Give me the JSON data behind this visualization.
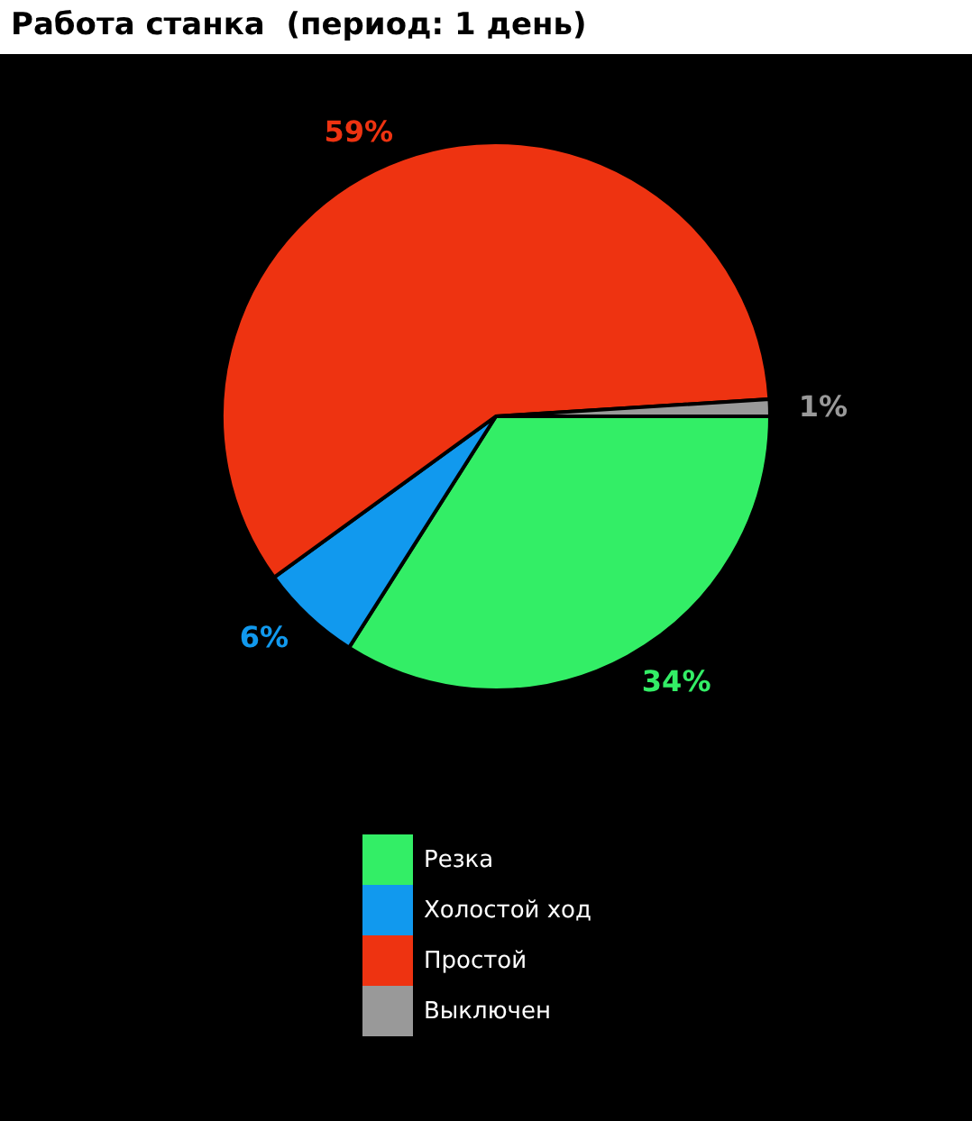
{
  "chart_data": {
    "type": "pie",
    "title": "Работа станка  (период: 1 день)",
    "categories": [
      "Резка",
      "Холостой ход",
      "Простой",
      "Выключен"
    ],
    "values": [
      34,
      6,
      59,
      1
    ],
    "value_labels": [
      "34%",
      "6%",
      "59%",
      "1%"
    ],
    "colors": [
      "#33ee66",
      "#1199ee",
      "#ee3311",
      "#999999"
    ],
    "legend": "bottom"
  }
}
